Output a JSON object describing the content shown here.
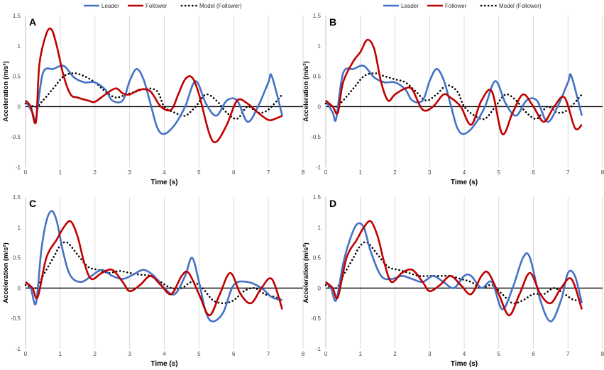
{
  "chart_data": {
    "type": "line",
    "legend": [
      "Leader",
      "Follower",
      "Model (Follower)"
    ],
    "colors": {
      "Leader": "#4472c4",
      "Follower": "#c00000",
      "Model (Follower)": "#000000"
    },
    "xlabel": "Time (s)",
    "ylabel": "Acceleration (m/s²)",
    "xlim": [
      0,
      8
    ],
    "ylim": [
      -1,
      1.5
    ],
    "xticks": [
      "0",
      "1",
      "2",
      "3",
      "4",
      "5",
      "6",
      "7",
      "8"
    ],
    "yticks": [
      "1.5",
      "1",
      "0.5",
      "0",
      "-0.5",
      "-1"
    ],
    "panels": [
      {
        "label": "A",
        "series": [
          {
            "name": "Leader",
            "x": [
              0,
              0.2,
              0.3,
              0.5,
              0.8,
              1.1,
              1.4,
              1.7,
              2.0,
              2.3,
              2.5,
              2.8,
              3.0,
              3.2,
              3.4,
              3.6,
              3.8,
              4.0,
              4.3,
              4.6,
              4.9,
              5.2,
              5.5,
              5.8,
              6.1,
              6.4,
              6.7,
              7.0,
              7.1,
              7.4
            ],
            "y": [
              0.1,
              -0.1,
              -0.2,
              0.55,
              0.62,
              0.67,
              0.48,
              0.4,
              0.4,
              0.28,
              0.1,
              0.1,
              0.42,
              0.62,
              0.45,
              0.05,
              -0.35,
              -0.45,
              -0.3,
              0.0,
              0.42,
              0.05,
              -0.15,
              0.1,
              0.1,
              -0.25,
              0.0,
              0.4,
              0.5,
              -0.15
            ]
          },
          {
            "name": "Follower",
            "x": [
              0,
              0.15,
              0.3,
              0.4,
              0.6,
              0.75,
              0.9,
              1.1,
              1.3,
              1.5,
              1.8,
              2.0,
              2.3,
              2.6,
              2.8,
              3.0,
              3.3,
              3.6,
              3.9,
              4.2,
              4.4,
              4.6,
              4.8,
              5.0,
              5.3,
              5.5,
              5.8,
              6.1,
              6.4,
              6.7,
              7.0,
              7.2,
              7.4
            ],
            "y": [
              0.1,
              0.0,
              -0.25,
              0.7,
              1.2,
              1.27,
              1.0,
              0.5,
              0.2,
              0.15,
              0.1,
              0.08,
              0.2,
              0.3,
              0.22,
              0.2,
              0.28,
              0.25,
              0.0,
              -0.05,
              0.2,
              0.45,
              0.48,
              0.2,
              -0.45,
              -0.58,
              -0.3,
              0.1,
              0.05,
              -0.1,
              -0.22,
              -0.2,
              -0.15
            ]
          },
          {
            "name": "Model (Follower)",
            "x": [
              0,
              0.3,
              0.5,
              0.8,
              1.1,
              1.4,
              1.7,
              2.0,
              2.3,
              2.6,
              2.9,
              3.2,
              3.5,
              3.8,
              4.0,
              4.3,
              4.6,
              4.9,
              5.2,
              5.5,
              5.8,
              6.1,
              6.4,
              6.7,
              7.0,
              7.4
            ],
            "y": [
              0.05,
              0.0,
              0.1,
              0.3,
              0.5,
              0.55,
              0.5,
              0.4,
              0.25,
              0.15,
              0.2,
              0.25,
              0.3,
              0.25,
              0.0,
              -0.1,
              -0.15,
              0.0,
              0.2,
              0.1,
              -0.1,
              -0.2,
              0.0,
              -0.1,
              -0.05,
              0.2
            ]
          }
        ]
      },
      {
        "label": "B",
        "series": [
          {
            "name": "Leader",
            "x": [
              0,
              0.2,
              0.3,
              0.5,
              0.8,
              1.1,
              1.4,
              1.7,
              2.0,
              2.3,
              2.5,
              2.8,
              3.0,
              3.2,
              3.4,
              3.6,
              3.8,
              4.0,
              4.3,
              4.6,
              4.9,
              5.2,
              5.5,
              5.8,
              6.1,
              6.4,
              6.7,
              7.0,
              7.1,
              7.4
            ],
            "y": [
              0.1,
              -0.1,
              -0.2,
              0.55,
              0.62,
              0.67,
              0.48,
              0.4,
              0.4,
              0.28,
              0.1,
              0.1,
              0.42,
              0.62,
              0.45,
              0.05,
              -0.35,
              -0.45,
              -0.3,
              0.0,
              0.42,
              0.05,
              -0.15,
              0.1,
              0.1,
              -0.25,
              0.0,
              0.4,
              0.5,
              -0.15
            ]
          },
          {
            "name": "Follower",
            "x": [
              0,
              0.2,
              0.35,
              0.5,
              0.8,
              1.0,
              1.2,
              1.4,
              1.6,
              1.8,
              2.0,
              2.3,
              2.5,
              2.8,
              3.1,
              3.4,
              3.6,
              3.9,
              4.2,
              4.5,
              4.8,
              5.1,
              5.4,
              5.7,
              6.0,
              6.3,
              6.6,
              6.9,
              7.2,
              7.4
            ],
            "y": [
              0.1,
              0.0,
              -0.1,
              0.4,
              0.75,
              0.9,
              1.1,
              0.95,
              0.4,
              0.1,
              0.2,
              0.3,
              0.28,
              -0.05,
              0.0,
              0.2,
              0.15,
              0.0,
              -0.3,
              0.1,
              0.25,
              -0.45,
              -0.1,
              0.2,
              0.0,
              -0.25,
              0.0,
              0.15,
              -0.35,
              -0.3
            ]
          },
          {
            "name": "Model (Follower)",
            "x": [
              0,
              0.3,
              0.5,
              0.8,
              1.1,
              1.4,
              1.7,
              2.0,
              2.3,
              2.6,
              2.9,
              3.2,
              3.5,
              3.8,
              4.0,
              4.3,
              4.6,
              4.9,
              5.2,
              5.5,
              5.8,
              6.1,
              6.4,
              6.7,
              7.0,
              7.4
            ],
            "y": [
              0.05,
              0.0,
              0.1,
              0.3,
              0.5,
              0.55,
              0.5,
              0.45,
              0.4,
              0.25,
              0.1,
              0.2,
              0.35,
              0.25,
              0.0,
              -0.15,
              -0.2,
              0.0,
              0.2,
              0.1,
              -0.1,
              -0.2,
              0.0,
              -0.1,
              -0.05,
              0.2
            ]
          }
        ]
      },
      {
        "label": "C",
        "series": [
          {
            "name": "Leader",
            "x": [
              0,
              0.15,
              0.3,
              0.45,
              0.6,
              0.75,
              0.9,
              1.1,
              1.3,
              1.6,
              1.9,
              2.2,
              2.5,
              2.8,
              3.1,
              3.4,
              3.7,
              4.0,
              4.3,
              4.6,
              4.8,
              5.0,
              5.2,
              5.4,
              5.7,
              6.0,
              6.4,
              6.8,
              7.1,
              7.4
            ],
            "y": [
              0.1,
              0.0,
              -0.25,
              0.6,
              1.1,
              1.27,
              1.1,
              0.55,
              0.2,
              0.1,
              0.2,
              0.3,
              0.2,
              0.15,
              0.22,
              0.3,
              0.2,
              0.0,
              -0.1,
              0.2,
              0.5,
              0.1,
              -0.4,
              -0.55,
              -0.4,
              0.05,
              0.1,
              0.0,
              -0.15,
              -0.2
            ]
          },
          {
            "name": "Follower",
            "x": [
              0,
              0.2,
              0.35,
              0.6,
              0.9,
              1.1,
              1.3,
              1.5,
              1.7,
              1.9,
              2.2,
              2.5,
              2.8,
              3.0,
              3.3,
              3.6,
              3.9,
              4.2,
              4.5,
              4.7,
              5.0,
              5.3,
              5.6,
              5.9,
              6.2,
              6.5,
              6.8,
              7.1,
              7.4
            ],
            "y": [
              0.1,
              0.0,
              -0.15,
              0.5,
              0.8,
              1.0,
              1.1,
              0.85,
              0.4,
              0.15,
              0.25,
              0.3,
              0.1,
              -0.05,
              0.05,
              0.2,
              0.05,
              -0.1,
              0.2,
              0.25,
              -0.1,
              -0.45,
              -0.1,
              0.25,
              -0.1,
              -0.25,
              0.0,
              0.15,
              -0.35
            ]
          },
          {
            "name": "Model (Follower)",
            "x": [
              0,
              0.3,
              0.5,
              0.8,
              1.0,
              1.2,
              1.5,
              1.8,
              2.1,
              2.4,
              2.7,
              3.0,
              3.3,
              3.6,
              3.9,
              4.2,
              4.5,
              4.8,
              5.1,
              5.4,
              5.7,
              6.0,
              6.3,
              6.6,
              6.9,
              7.2,
              7.4
            ],
            "y": [
              0.05,
              0.0,
              0.2,
              0.5,
              0.7,
              0.75,
              0.55,
              0.35,
              0.3,
              0.25,
              0.28,
              0.25,
              0.22,
              0.2,
              0.1,
              0.0,
              0.0,
              0.1,
              0.0,
              -0.2,
              -0.25,
              -0.2,
              -0.05,
              0.0,
              -0.1,
              -0.15,
              -0.2
            ]
          }
        ]
      },
      {
        "label": "D",
        "series": [
          {
            "name": "Leader",
            "x": [
              0,
              0.15,
              0.3,
              0.5,
              0.7,
              0.9,
              1.1,
              1.3,
              1.6,
              1.9,
              2.2,
              2.5,
              2.8,
              3.1,
              3.4,
              3.7,
              4.0,
              4.2,
              4.5,
              4.8,
              5.1,
              5.4,
              5.7,
              5.9,
              6.2,
              6.5,
              6.8,
              7.0,
              7.2,
              7.4
            ],
            "y": [
              0.1,
              0.0,
              -0.2,
              0.4,
              0.8,
              1.05,
              1.0,
              0.6,
              0.2,
              0.15,
              0.2,
              0.15,
              0.1,
              0.2,
              0.1,
              0.0,
              0.2,
              0.2,
              0.0,
              0.1,
              -0.35,
              0.0,
              0.5,
              0.5,
              -0.2,
              -0.55,
              -0.2,
              0.25,
              0.2,
              -0.25
            ]
          },
          {
            "name": "Follower",
            "x": [
              0,
              0.2,
              0.35,
              0.6,
              0.9,
              1.1,
              1.3,
              1.5,
              1.7,
              1.9,
              2.2,
              2.5,
              2.8,
              3.0,
              3.3,
              3.6,
              3.9,
              4.2,
              4.5,
              4.7,
              5.0,
              5.3,
              5.6,
              5.9,
              6.2,
              6.5,
              6.8,
              7.1,
              7.4
            ],
            "y": [
              0.1,
              0.0,
              -0.15,
              0.5,
              0.8,
              1.0,
              1.1,
              0.85,
              0.4,
              0.1,
              0.25,
              0.3,
              0.1,
              -0.05,
              0.05,
              0.2,
              0.05,
              -0.1,
              0.2,
              0.25,
              -0.1,
              -0.45,
              -0.1,
              0.25,
              -0.1,
              -0.25,
              0.0,
              0.15,
              -0.35
            ]
          },
          {
            "name": "Model (Follower)",
            "x": [
              0,
              0.3,
              0.5,
              0.8,
              1.0,
              1.2,
              1.5,
              1.8,
              2.1,
              2.4,
              2.7,
              3.0,
              3.3,
              3.6,
              3.9,
              4.2,
              4.5,
              4.8,
              5.1,
              5.4,
              5.7,
              6.0,
              6.3,
              6.6,
              6.9,
              7.2,
              7.4
            ],
            "y": [
              0.05,
              0.0,
              0.2,
              0.5,
              0.7,
              0.75,
              0.55,
              0.35,
              0.3,
              0.25,
              0.2,
              0.2,
              0.2,
              0.2,
              0.15,
              0.1,
              0.0,
              0.05,
              -0.1,
              -0.25,
              -0.2,
              -0.1,
              -0.1,
              0.0,
              -0.1,
              -0.2,
              -0.15
            ]
          }
        ]
      }
    ]
  }
}
